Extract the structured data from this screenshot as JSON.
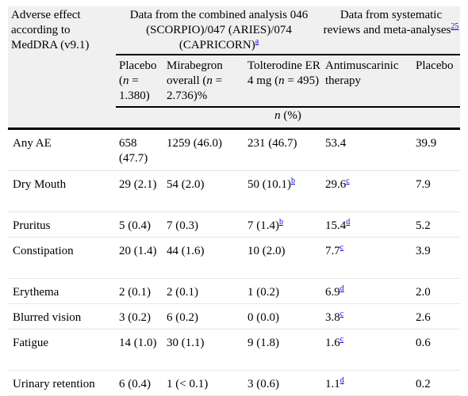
{
  "header": {
    "col0": "Adverse effect according to MedDRA (v9.1)",
    "group1": "Data from the combined analysis 046 (SCORPIO)/047 (ARIES)/074 (CAPRICORN)",
    "group1_ref": "a",
    "group2": "Data from systematic reviews and meta-analyses",
    "group2_ref": "25",
    "placebo_label": "Placebo",
    "n_label": "n",
    "placebo_n": "= 1.380)",
    "mirabegron_label": "Mirabegron overall (",
    "mirabegron_n": "= 2.736)%",
    "tolterodine_label": "Tolterodine ER 4 mg (",
    "tolterodine_n": "= 495)",
    "antimuscarinic_label": "Antimuscarinic therapy",
    "placebo2_label": "Placebo",
    "unit_n": "n",
    "unit_pct": "(%)"
  },
  "rows": [
    {
      "effect": "Any AE",
      "placebo": "658 (47.7)",
      "mirabegron": "1259 (46.0)",
      "tolterodine": "231 (46.7)",
      "tolterodine_sup": "",
      "anti": "53.4",
      "anti_sup": "",
      "placebo2": "39.9"
    },
    {
      "effect": "Dry Mouth",
      "placebo": "29 (2.1)",
      "mirabegron": "54 (2.0)",
      "tolterodine": "50 (10.1)",
      "tolterodine_sup": "b",
      "anti": "29.6",
      "anti_sup": "c",
      "placebo2": "7.9"
    },
    {
      "effect": "Pruritus",
      "placebo": "5 (0.4)",
      "mirabegron": "7 (0.3)",
      "tolterodine": "7 (1.4)",
      "tolterodine_sup": "b",
      "anti": "15.4",
      "anti_sup": "d",
      "placebo2": "5.2"
    },
    {
      "effect": "Constipation",
      "placebo": "20 (1.4)",
      "mirabegron": "44 (1.6)",
      "tolterodine": "10 (2.0)",
      "tolterodine_sup": "",
      "anti": "7.7",
      "anti_sup": "c",
      "placebo2": "3.9"
    },
    {
      "effect": "Erythema",
      "placebo": "2 (0.1)",
      "mirabegron": "2 (0.1)",
      "tolterodine": "1 (0.2)",
      "tolterodine_sup": "",
      "anti": "6.9",
      "anti_sup": "d",
      "placebo2": "2.0"
    },
    {
      "effect": "Blurred vision",
      "placebo": "3 (0.2)",
      "mirabegron": "6 (0.2)",
      "tolterodine": "0 (0.0)",
      "tolterodine_sup": "",
      "anti": "3.8",
      "anti_sup": "c",
      "placebo2": "2.6"
    },
    {
      "effect": "Fatigue",
      "placebo": "14 (1.0)",
      "mirabegron": "30 (1.1)",
      "tolterodine": "9 (1.8)",
      "tolterodine_sup": "",
      "anti": "1.6",
      "anti_sup": "c",
      "placebo2": "0.6"
    },
    {
      "effect": "Urinary retention",
      "placebo": "6 (0.4)",
      "mirabegron": "1 (< 0.1)",
      "tolterodine": "3 (0.6)",
      "tolterodine_sup": "",
      "anti": "1.1",
      "anti_sup": "d",
      "placebo2": "0.2"
    }
  ]
}
